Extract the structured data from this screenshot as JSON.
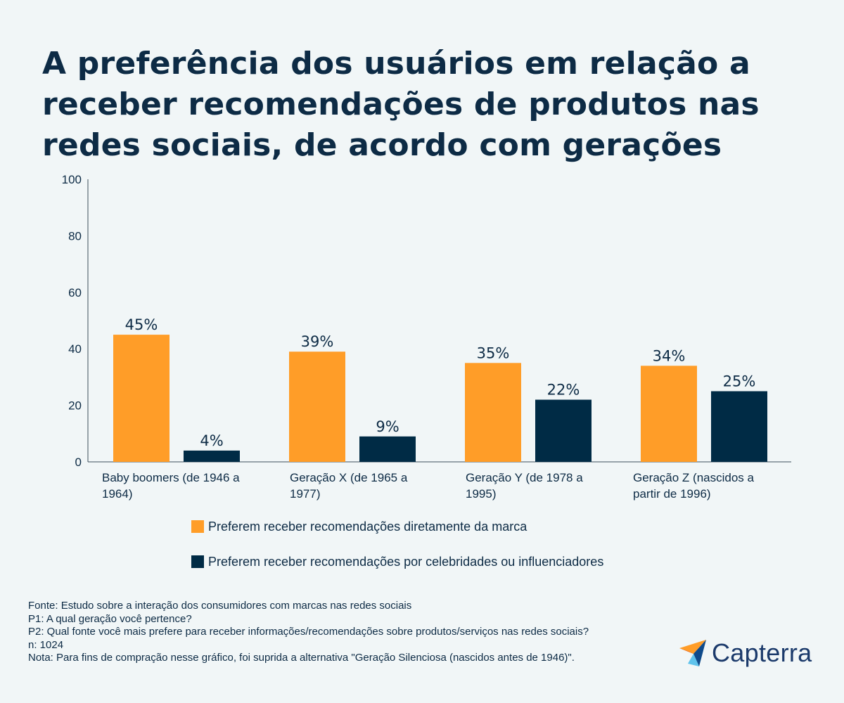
{
  "title": "A preferência dos usuários em relação a receber recomendações de produtos nas redes sociais, de acordo com gerações",
  "colors": {
    "brand": "#ff9d28",
    "influencer": "#002b45",
    "axis": "#3d4d5b"
  },
  "chart_data": {
    "type": "bar",
    "categories": [
      [
        "Baby boomers (de 1946 a",
        "1964)"
      ],
      [
        "Geração X (de 1965 a",
        "1977)"
      ],
      [
        "Geração Y (de 1978 a",
        "1995)"
      ],
      [
        "Geração Z (nascidos a",
        "partir de 1996)"
      ]
    ],
    "series": [
      {
        "name": "Preferem receber recomendações diretamente da marca",
        "values": [
          45,
          39,
          35,
          34
        ],
        "labels": [
          "45%",
          "39%",
          "35%",
          "34%"
        ],
        "color": "#ff9d28"
      },
      {
        "name": "Preferem receber recomendações por celebridades ou influenciadores",
        "values": [
          4,
          9,
          22,
          25
        ],
        "labels": [
          "4%",
          "9%",
          "22%",
          "25%"
        ],
        "color": "#002b45"
      }
    ],
    "yticks": [
      "0",
      "20",
      "40",
      "60",
      "80",
      "100"
    ],
    "ylim": [
      0,
      100
    ],
    "grid": false,
    "legend": "bottom"
  },
  "legend": {
    "items": [
      {
        "label": "Preferem receber recomendações diretamente da marca",
        "color": "#ff9d28"
      },
      {
        "label": "Preferem receber recomendações por celebridades ou influenciadores",
        "color": "#002b45"
      }
    ]
  },
  "footer": {
    "lines": [
      "Fonte: Estudo sobre a interação dos consumidores com marcas nas redes sociais",
      "P1: A qual geração você pertence?",
      "P2: Qual fonte você mais prefere para receber informações/recomendações sobre produtos/serviços nas redes sociais?",
      "n: 1024",
      "Nota: Para fins de compração nesse gráfico, foi suprida a alternativa \"Geração Silenciosa (nascidos antes de 1946)\"."
    ]
  },
  "logo": {
    "text": "Capterra",
    "icon": "capterra-arrow-icon"
  }
}
